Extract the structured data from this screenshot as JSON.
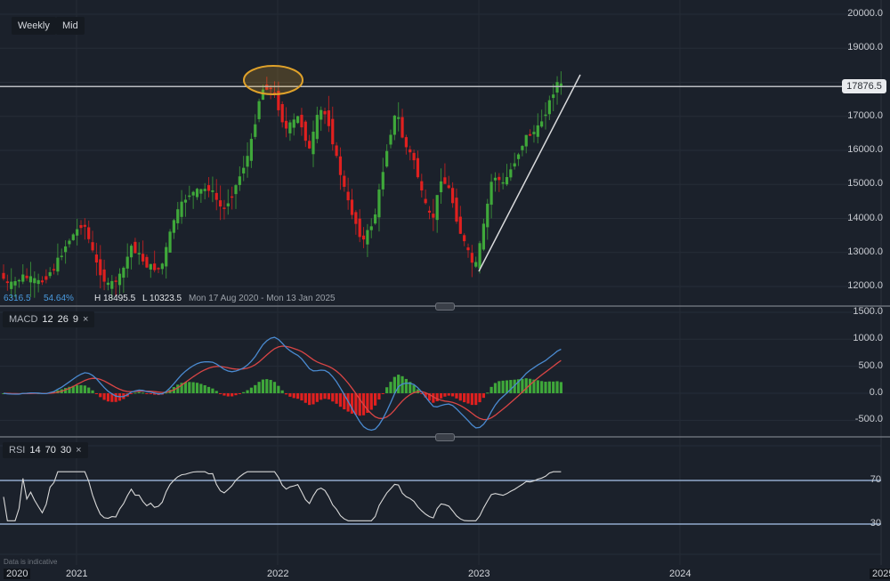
{
  "toolbar": {
    "interval_label": "Weekly",
    "price_type_label": "Mid"
  },
  "price_panel": {
    "current_price": "17876.5",
    "info": {
      "left_value": "6316.5",
      "left_pct": "54.64%",
      "high": "H 18495.5",
      "low": "L 10323.5",
      "range": "Mon 17 Aug 2020 - Mon 13 Jan 2025"
    },
    "y_ticks": [
      "20000.0",
      "19000.0",
      "18000.0",
      "17000.0",
      "16000.0",
      "15000.0",
      "14000.0",
      "13000.0",
      "12000.0"
    ]
  },
  "macd_panel": {
    "name": "MACD",
    "p1": "12",
    "p2": "26",
    "p3": "9",
    "close": "×",
    "y_ticks": [
      "1500.0",
      "1000.0",
      "500.0",
      "0.0",
      "-500.0"
    ]
  },
  "rsi_panel": {
    "name": "RSI",
    "p1": "14",
    "p2": "70",
    "p3": "30",
    "close": "×",
    "y_ticks": [
      "70",
      "30"
    ]
  },
  "x_axis": {
    "labels": [
      "2020",
      "2021",
      "2022",
      "2023",
      "2024",
      "2025"
    ]
  },
  "footer": {
    "note": "Data is indicative"
  },
  "colors": {
    "up": "#3fa83a",
    "down": "#e0201f",
    "macd": "#4a8ad0",
    "signal": "#d94545",
    "rsi": "#d8d8d8",
    "rsi_band": "#a9c7ec",
    "ellipse": "#e0a22a"
  },
  "chart_data": {
    "type": "candlestick",
    "title": "Weekly Mid price",
    "x_ticks": [
      "2020",
      "2021",
      "2022",
      "2023",
      "2024",
      "2025"
    ],
    "ylim": [
      11500,
      20300
    ],
    "current_price": 17876.5,
    "horizontal_line": 17876.5,
    "trendline": {
      "from": [
        "2023-01",
        12400
      ],
      "to": [
        "2023-06",
        18200
      ]
    },
    "annotation": "ellipse highlight at late-2021 high near 18000",
    "candles_approx": [
      {
        "x": "2020-09",
        "o": 12300,
        "c": 12000
      },
      {
        "x": "2020-12",
        "o": 12100,
        "c": 12400
      },
      {
        "x": "2021-02",
        "o": 13300,
        "c": 13900
      },
      {
        "x": "2021-04",
        "o": 12900,
        "c": 12000
      },
      {
        "x": "2021-06",
        "o": 12300,
        "c": 12600
      },
      {
        "x": "2021-09",
        "o": 14600,
        "c": 15000
      },
      {
        "x": "2021-11",
        "o": 15900,
        "c": 17600
      },
      {
        "x": "2021-12",
        "o": 18200,
        "c": 17200
      },
      {
        "x": "2022-02",
        "o": 16000,
        "c": 16800
      },
      {
        "x": "2022-04",
        "o": 17700,
        "c": 16900
      },
      {
        "x": "2022-06",
        "o": 15000,
        "c": 13600
      },
      {
        "x": "2022-08",
        "o": 15400,
        "c": 17200
      },
      {
        "x": "2022-10",
        "o": 16000,
        "c": 14300
      },
      {
        "x": "2022-12",
        "o": 15000,
        "c": 13400
      },
      {
        "x": "2023-01",
        "o": 12900,
        "c": 12500
      },
      {
        "x": "2023-03",
        "o": 14600,
        "c": 15300
      },
      {
        "x": "2023-05",
        "o": 16500,
        "c": 17100
      },
      {
        "x": "2023-06",
        "o": 18200,
        "c": 17900
      }
    ],
    "indicators": {
      "macd": {
        "params": [
          12,
          26,
          9
        ],
        "ylim": [
          -800,
          1600
        ],
        "latest": {
          "macd": 820,
          "signal": 590,
          "histogram": 230
        }
      },
      "rsi": {
        "params": [
          14,
          70,
          30
        ],
        "levels": [
          70,
          30
        ],
        "latest": 70
      }
    }
  }
}
